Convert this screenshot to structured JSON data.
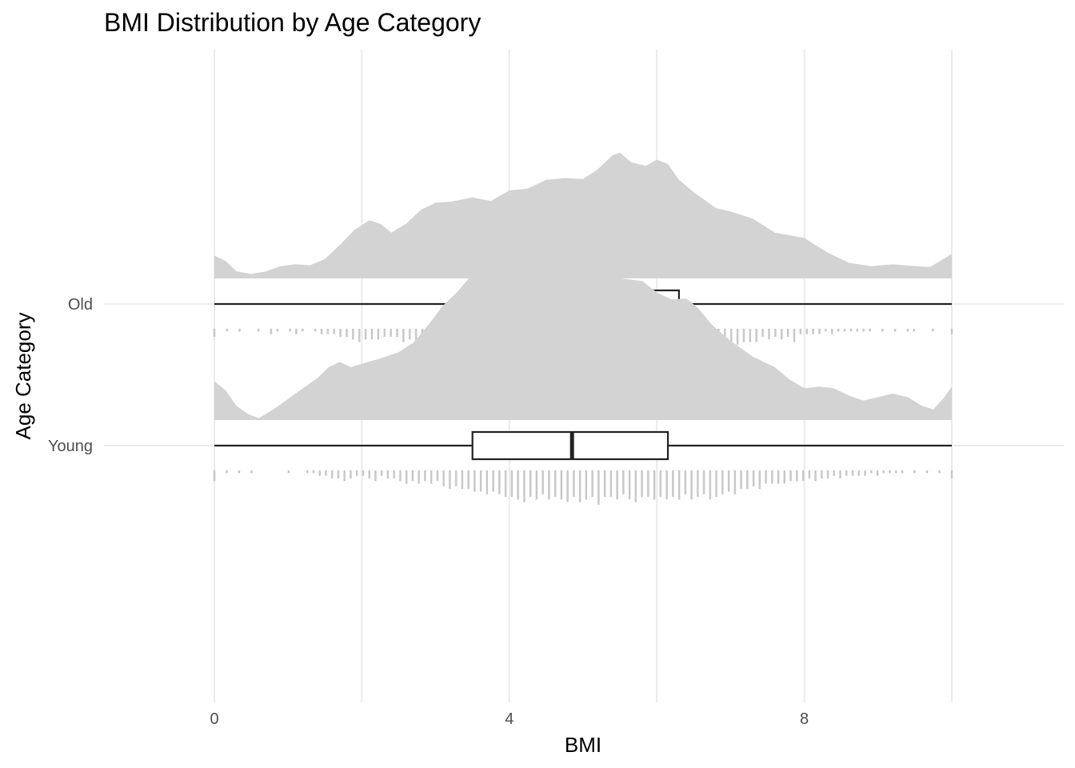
{
  "chart_data": {
    "type": "raincloud",
    "title": "BMI Distribution by Age Category",
    "xlabel": "BMI",
    "ylabel": "Age Category",
    "xlim": [
      0,
      10
    ],
    "x_ticks": [
      0,
      4,
      8
    ],
    "x_minor_gridlines": [
      2,
      6,
      10
    ],
    "grid": true,
    "legend": "none",
    "colors": {
      "density_fill": "#d3d3d3",
      "box_stroke": "#222222",
      "box_fill": "#ffffff",
      "dots": "#c8c8c8",
      "grid": "#ebebeb"
    },
    "series": [
      {
        "name": "Old",
        "box": {
          "min": 0.0,
          "q1": 3.7,
          "median": 5.2,
          "q3": 6.3,
          "max": 10.0
        },
        "density": [
          [
            0.0,
            0.26
          ],
          [
            0.15,
            0.2
          ],
          [
            0.3,
            0.08
          ],
          [
            0.5,
            0.05
          ],
          [
            0.7,
            0.08
          ],
          [
            0.9,
            0.14
          ],
          [
            1.1,
            0.16
          ],
          [
            1.3,
            0.15
          ],
          [
            1.5,
            0.22
          ],
          [
            1.7,
            0.38
          ],
          [
            1.9,
            0.55
          ],
          [
            2.1,
            0.66
          ],
          [
            2.25,
            0.62
          ],
          [
            2.4,
            0.52
          ],
          [
            2.6,
            0.62
          ],
          [
            2.8,
            0.78
          ],
          [
            3.0,
            0.86
          ],
          [
            3.2,
            0.87
          ],
          [
            3.5,
            0.92
          ],
          [
            3.75,
            0.88
          ],
          [
            4.0,
            1.0
          ],
          [
            4.25,
            1.02
          ],
          [
            4.5,
            1.12
          ],
          [
            4.75,
            1.14
          ],
          [
            5.0,
            1.13
          ],
          [
            5.2,
            1.24
          ],
          [
            5.4,
            1.4
          ],
          [
            5.5,
            1.43
          ],
          [
            5.65,
            1.32
          ],
          [
            5.85,
            1.28
          ],
          [
            6.0,
            1.35
          ],
          [
            6.15,
            1.3
          ],
          [
            6.3,
            1.12
          ],
          [
            6.5,
            0.98
          ],
          [
            6.8,
            0.8
          ],
          [
            7.0,
            0.76
          ],
          [
            7.3,
            0.68
          ],
          [
            7.6,
            0.52
          ],
          [
            8.0,
            0.46
          ],
          [
            8.3,
            0.3
          ],
          [
            8.6,
            0.18
          ],
          [
            8.9,
            0.14
          ],
          [
            9.2,
            0.16
          ],
          [
            9.5,
            0.14
          ],
          [
            9.7,
            0.13
          ],
          [
            9.85,
            0.2
          ],
          [
            10.0,
            0.28
          ]
        ],
        "dot_counts": [
          3,
          0,
          1,
          0,
          1,
          0,
          0,
          1,
          0,
          2,
          1,
          0,
          1,
          2,
          1,
          0,
          1,
          2,
          2,
          2,
          3,
          3,
          4,
          5,
          4,
          4,
          4,
          3,
          3,
          3,
          5,
          4,
          6,
          5,
          7,
          7,
          8,
          7,
          9,
          10,
          12,
          11,
          11,
          10,
          11,
          10,
          9,
          11,
          12,
          12,
          11,
          9,
          12,
          10,
          11,
          13,
          12,
          11,
          12,
          9,
          11,
          10,
          11,
          14,
          15,
          13,
          13,
          12,
          10,
          10,
          12,
          12,
          13,
          11,
          15,
          11,
          11,
          10,
          8,
          9,
          8,
          9,
          7,
          6,
          5,
          5,
          5,
          3,
          4,
          3,
          4,
          3,
          5,
          2,
          2,
          2,
          2,
          1,
          2,
          1,
          1,
          1,
          1,
          1,
          1,
          0,
          1,
          0,
          1,
          0,
          1,
          1,
          0,
          0,
          1,
          0,
          0,
          2
        ]
      },
      {
        "name": "Young",
        "box": {
          "min": 0.0,
          "q1": 3.5,
          "median": 4.85,
          "q3": 6.15,
          "max": 10.0
        },
        "density": [
          [
            0.0,
            0.44
          ],
          [
            0.15,
            0.34
          ],
          [
            0.3,
            0.16
          ],
          [
            0.45,
            0.07
          ],
          [
            0.6,
            0.02
          ],
          [
            0.8,
            0.12
          ],
          [
            1.0,
            0.24
          ],
          [
            1.2,
            0.36
          ],
          [
            1.4,
            0.48
          ],
          [
            1.55,
            0.6
          ],
          [
            1.7,
            0.66
          ],
          [
            1.85,
            0.6
          ],
          [
            2.0,
            0.64
          ],
          [
            2.25,
            0.7
          ],
          [
            2.5,
            0.77
          ],
          [
            2.7,
            0.88
          ],
          [
            2.9,
            1.08
          ],
          [
            3.1,
            1.3
          ],
          [
            3.3,
            1.46
          ],
          [
            3.5,
            1.66
          ],
          [
            3.65,
            1.87
          ],
          [
            3.8,
            1.84
          ],
          [
            4.0,
            1.78
          ],
          [
            4.2,
            1.82
          ],
          [
            4.4,
            1.75
          ],
          [
            4.6,
            1.68
          ],
          [
            4.8,
            1.72
          ],
          [
            5.0,
            1.78
          ],
          [
            5.2,
            1.7
          ],
          [
            5.4,
            1.62
          ],
          [
            5.6,
            1.6
          ],
          [
            5.8,
            1.58
          ],
          [
            6.0,
            1.45
          ],
          [
            6.2,
            1.37
          ],
          [
            6.4,
            1.38
          ],
          [
            6.55,
            1.28
          ],
          [
            6.75,
            1.08
          ],
          [
            7.0,
            0.9
          ],
          [
            7.3,
            0.72
          ],
          [
            7.6,
            0.6
          ],
          [
            7.8,
            0.46
          ],
          [
            8.0,
            0.36
          ],
          [
            8.2,
            0.38
          ],
          [
            8.4,
            0.36
          ],
          [
            8.6,
            0.28
          ],
          [
            8.8,
            0.22
          ],
          [
            9.0,
            0.26
          ],
          [
            9.2,
            0.3
          ],
          [
            9.4,
            0.26
          ],
          [
            9.6,
            0.16
          ],
          [
            9.75,
            0.12
          ],
          [
            9.9,
            0.26
          ],
          [
            10.0,
            0.38
          ]
        ],
        "dot_counts": [
          4,
          0,
          1,
          0,
          1,
          0,
          1,
          0,
          0,
          0,
          0,
          0,
          1,
          0,
          0,
          1,
          1,
          2,
          2,
          3,
          3,
          4,
          3,
          2,
          2,
          3,
          4,
          2,
          3,
          3,
          4,
          5,
          4,
          5,
          4,
          5,
          4,
          6,
          7,
          6,
          7,
          7,
          8,
          8,
          9,
          8,
          9,
          10,
          10,
          11,
          12,
          10,
          11,
          9,
          11,
          10,
          11,
          12,
          10,
          12,
          11,
          10,
          13,
          10,
          10,
          11,
          9,
          11,
          12,
          10,
          10,
          11,
          10,
          11,
          10,
          11,
          9,
          11,
          10,
          9,
          11,
          10,
          9,
          8,
          9,
          7,
          7,
          6,
          7,
          5,
          5,
          5,
          5,
          4,
          4,
          4,
          3,
          4,
          3,
          3,
          2,
          3,
          2,
          2,
          2,
          2,
          1,
          2,
          1,
          1,
          1,
          1,
          0,
          1,
          0,
          1,
          0,
          1,
          0,
          3
        ]
      }
    ]
  }
}
